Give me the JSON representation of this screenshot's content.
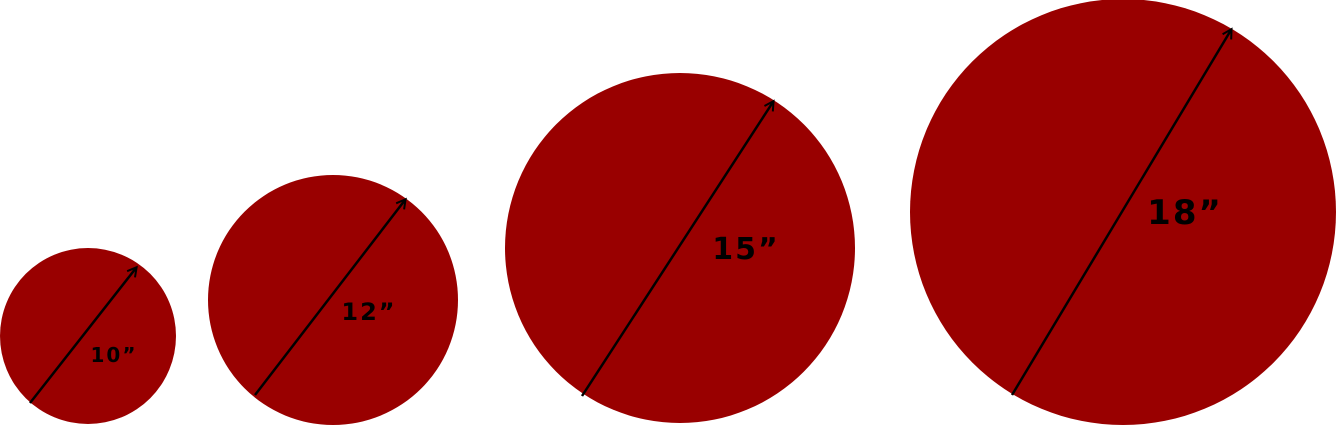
{
  "colors": {
    "circle_fill": "#990000",
    "arrow_stroke": "#000000",
    "label_color": "#000000",
    "background": "#ffffff"
  },
  "circles": [
    {
      "label": "10”"
    },
    {
      "label": "12”"
    },
    {
      "label": "15”"
    },
    {
      "label": "18”"
    }
  ]
}
